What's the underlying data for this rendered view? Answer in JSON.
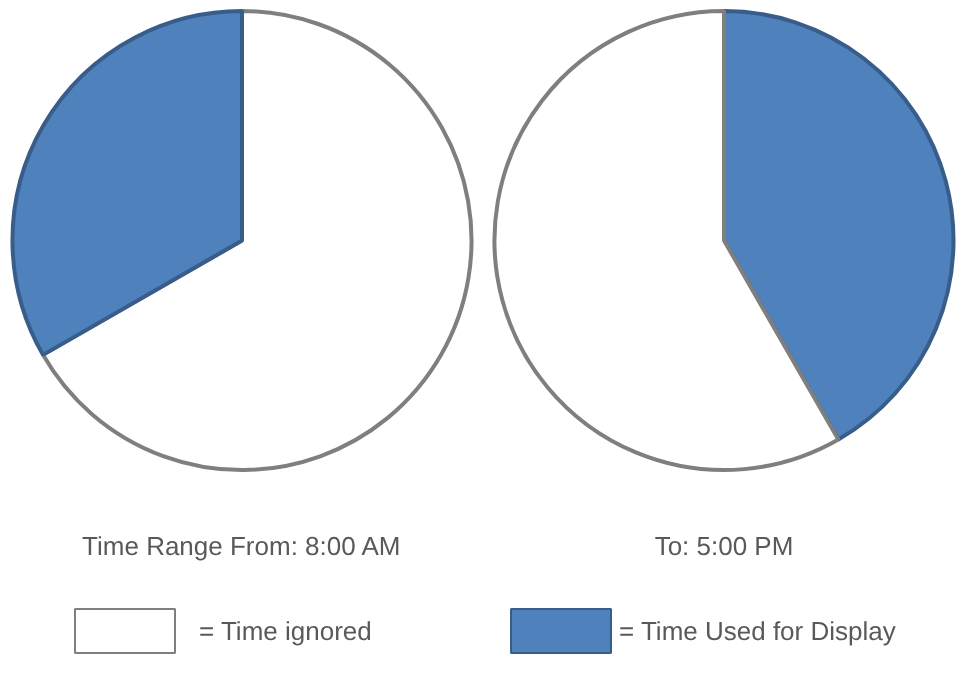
{
  "chart_data": [
    {
      "type": "pie",
      "annotations": [
        "Time Range From: 8:00 AM"
      ],
      "categories": [
        "= Time ignored",
        "= Time Used for Display"
      ],
      "values": [
        66.7,
        33.3
      ],
      "colors": [
        "#ffffff",
        "#4f81bd"
      ],
      "legend": "bottom"
    },
    {
      "type": "pie",
      "annotations": [
        "To: 5:00 PM"
      ],
      "categories": [
        null,
        null
      ],
      "values": [
        41.7,
        58.3
      ],
      "colors": [
        "#4f81bd",
        "#ffffff"
      ]
    }
  ]
}
